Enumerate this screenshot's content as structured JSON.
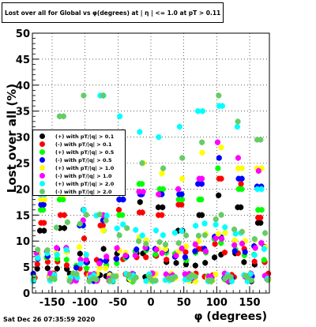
{
  "header": {
    "title": "Lost over all for Global vs φ(degrees) at | η | <= 1.0 at pT > 0.11"
  },
  "footer": {
    "timestamp": "Sat Dec 26 07:35:59 2020"
  },
  "chart_data": {
    "type": "scatter",
    "title": "Lost over all for Global vs φ(degrees) at | η | <= 1.0 at pT > 0.11",
    "xlabel": "φ (degrees)",
    "ylabel": "Lost over all (%)",
    "xlim": [
      -180,
      180
    ],
    "ylim": [
      0,
      50
    ],
    "xticks": [
      -150,
      -100,
      -50,
      0,
      50,
      100,
      150
    ],
    "yticks": [
      0,
      5,
      10,
      15,
      20,
      25,
      30,
      35,
      40,
      45,
      50
    ],
    "grid": true,
    "legend_position": "left",
    "colors": {
      "black": "#000000",
      "red": "#ff0000",
      "green": "#00ff00",
      "blue": "#0000ff",
      "yellow": "#ffff00",
      "magenta": "#ff00ff",
      "cyan": "#00ffff",
      "sage": "#66cc66"
    },
    "series": [
      {
        "name": "(+) with pT/|q| > 0.1",
        "color": "#000000",
        "peaks": [
          [
            -165,
            12
          ],
          [
            -135,
            12.5
          ],
          [
            -104,
            16
          ],
          [
            -74,
            8.5
          ],
          [
            -45,
            18
          ],
          [
            -16,
            17.5
          ],
          [
            15,
            16.5
          ],
          [
            45,
            12
          ],
          [
            75,
            15
          ],
          [
            103,
            18.8
          ],
          [
            135,
            16.5
          ],
          [
            165,
            13.5
          ]
        ]
      },
      {
        "name": "(-) with pT/|q| > 0.1",
        "color": "#ff0000",
        "peaks": [
          [
            -165,
            13.5
          ],
          [
            -135,
            15
          ],
          [
            -104,
            10.5
          ],
          [
            -75,
            13
          ],
          [
            -46,
            16
          ],
          [
            -15,
            15.5
          ],
          [
            15,
            15
          ],
          [
            45,
            17
          ],
          [
            75,
            8.5
          ],
          [
            105,
            22
          ],
          [
            136,
            21
          ],
          [
            165,
            14.5
          ]
        ]
      },
      {
        "name": "(+) with pT/|q| > 0.5",
        "color": "#00ff00",
        "peaks": [
          [
            -165,
            16
          ],
          [
            -135,
            18
          ],
          [
            -105,
            13
          ],
          [
            -74,
            12
          ],
          [
            -45,
            15
          ],
          [
            -15,
            21
          ],
          [
            15,
            20
          ],
          [
            45,
            18
          ],
          [
            75,
            18
          ],
          [
            103,
            24
          ],
          [
            135,
            20
          ],
          [
            165,
            16
          ]
        ]
      },
      {
        "name": "(-) with pT/|q| > 0.5",
        "color": "#0000ff",
        "peaks": [
          [
            -165,
            17
          ],
          [
            -135,
            20
          ],
          [
            -105,
            13
          ],
          [
            -74,
            14
          ],
          [
            -45,
            18
          ],
          [
            -15,
            19
          ],
          [
            15,
            19
          ],
          [
            45,
            19
          ],
          [
            75,
            21
          ],
          [
            104,
            26
          ],
          [
            135,
            22
          ],
          [
            165,
            20.5
          ]
        ]
      },
      {
        "name": "(+) with pT/|q| > 1.0",
        "color": "#ffff00",
        "peaks": [
          [
            -165,
            18
          ],
          [
            -135,
            19
          ],
          [
            -104,
            20
          ],
          [
            -74,
            12
          ],
          [
            -44,
            22
          ],
          [
            -14,
            25
          ],
          [
            16,
            23
          ],
          [
            46,
            22
          ],
          [
            76,
            27
          ],
          [
            106,
            28
          ],
          [
            135,
            24
          ],
          [
            165,
            24
          ]
        ]
      },
      {
        "name": "(-) with pT/|q| > 1.0",
        "color": "#ff00ff",
        "peaks": [
          [
            -165,
            19
          ],
          [
            -135,
            20
          ],
          [
            -104,
            14
          ],
          [
            -74,
            15
          ],
          [
            -45,
            20
          ],
          [
            -15,
            19.5
          ],
          [
            14,
            19
          ],
          [
            44,
            20
          ],
          [
            75,
            22
          ],
          [
            104,
            29
          ],
          [
            134,
            26
          ],
          [
            164,
            23.5
          ]
        ]
      },
      {
        "name": "(+) with pT/|q| > 2.0",
        "color": "#00ffff",
        "peaks": [
          [
            -165,
            19
          ],
          [
            -135,
            21
          ],
          [
            -104,
            16
          ],
          [
            -75,
            38
          ],
          [
            -46,
            34
          ],
          [
            -16,
            31
          ],
          [
            14,
            30
          ],
          [
            44,
            32
          ],
          [
            75,
            35
          ],
          [
            105,
            36
          ],
          [
            134,
            32
          ],
          [
            165,
            20
          ]
        ]
      },
      {
        "name": "(-) with pT/|q| > 2.0",
        "color": "#66cc66",
        "peaks": [
          [
            -165,
            20
          ],
          [
            -135,
            34
          ],
          [
            -104,
            38
          ],
          [
            -74,
            38
          ],
          [
            -44,
            31
          ],
          [
            -14,
            25
          ],
          [
            16,
            24
          ],
          [
            46,
            26
          ],
          [
            76,
            29
          ],
          [
            104,
            38
          ],
          [
            134,
            33
          ],
          [
            165,
            29.5
          ]
        ]
      }
    ]
  }
}
